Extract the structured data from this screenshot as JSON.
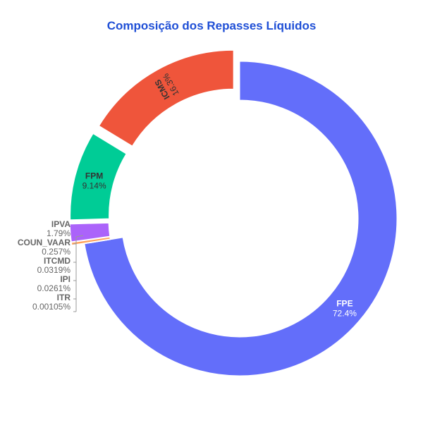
{
  "chart_data": {
    "type": "pie",
    "title": "Composição dos Repasses Líquidos",
    "hole": true,
    "slices": [
      {
        "label": "FPE",
        "percent_text": "72.4%",
        "value": 72.4,
        "color": "#636efa",
        "pulled": false,
        "text_color": "#ffffff"
      },
      {
        "label": "ITR",
        "percent_text": "0.00105%",
        "value": 0.00105,
        "color": "#ffa15a",
        "pulled": true,
        "text_color": "#666666"
      },
      {
        "label": "IPI",
        "percent_text": "0.0261%",
        "value": 0.0261,
        "color": "#19d3f3",
        "pulled": true,
        "text_color": "#666666"
      },
      {
        "label": "ITCMD",
        "percent_text": "0.0319%",
        "value": 0.0319,
        "color": "#ff6692",
        "pulled": true,
        "text_color": "#666666"
      },
      {
        "label": "COUN_VAAR",
        "percent_text": "0.257%",
        "value": 0.257,
        "color": "#ffa15a",
        "pulled": true,
        "text_color": "#666666"
      },
      {
        "label": "IPVA",
        "percent_text": "1.79%",
        "value": 1.79,
        "color": "#ab63fa",
        "pulled": true,
        "text_color": "#666666"
      },
      {
        "label": "FPM",
        "percent_text": "9.14%",
        "value": 9.14,
        "color": "#00cc96",
        "pulled": true,
        "text_color": "#333333"
      },
      {
        "label": "ICMS",
        "percent_text": "16.3%",
        "value": 16.3,
        "color": "#ef553b",
        "pulled": true,
        "text_color": "#333333"
      }
    ]
  }
}
